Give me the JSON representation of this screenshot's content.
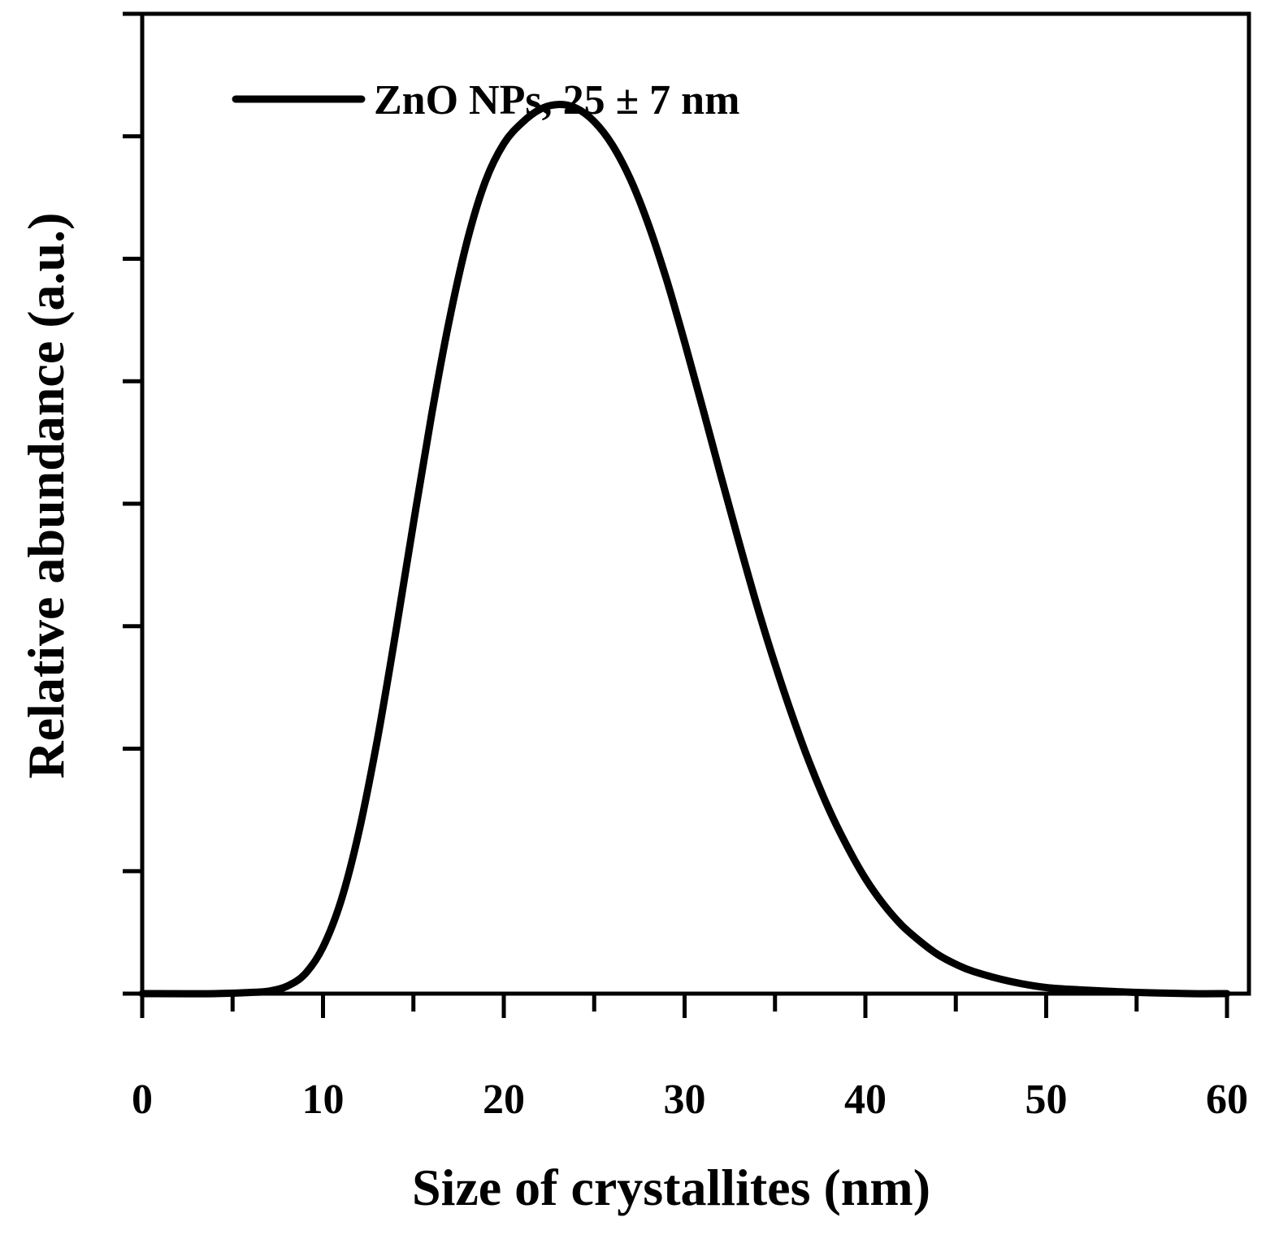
{
  "chart_data": {
    "type": "line",
    "title": "",
    "xlabel": "Size of crystallites (nm)",
    "ylabel": "Relative abundance (a.u.)",
    "xlim": [
      0,
      60
    ],
    "ylim": [
      0,
      8
    ],
    "x_major_ticks": [
      "0",
      "10",
      "20",
      "30",
      "40",
      "50",
      "60"
    ],
    "x_minor_step": 5,
    "y_tick_step": 1,
    "y_tick_labels_shown": false,
    "grid": false,
    "legend_position": "top-left",
    "series": [
      {
        "name": "ZnO NPs, 25 ± 7 nm",
        "color": "#000000",
        "x": [
          0,
          4,
          6,
          7,
          8,
          9,
          10,
          11,
          12,
          13,
          14,
          15,
          16,
          17,
          18,
          19,
          20,
          21,
          22,
          23,
          24,
          25,
          26,
          27,
          28,
          29,
          30,
          31,
          32,
          33,
          34,
          35,
          36,
          37,
          38,
          39,
          40,
          41,
          42,
          43,
          44,
          45,
          46,
          48,
          50,
          52,
          55,
          58,
          60
        ],
        "y": [
          0,
          0.0,
          0.01,
          0.02,
          0.06,
          0.16,
          0.38,
          0.76,
          1.33,
          2.07,
          2.93,
          3.84,
          4.72,
          5.51,
          6.16,
          6.64,
          6.94,
          7.11,
          7.22,
          7.26,
          7.23,
          7.12,
          6.93,
          6.65,
          6.28,
          5.83,
          5.32,
          4.78,
          4.23,
          3.69,
          3.17,
          2.69,
          2.25,
          1.85,
          1.5,
          1.2,
          0.94,
          0.73,
          0.56,
          0.43,
          0.32,
          0.24,
          0.18,
          0.1,
          0.05,
          0.03,
          0.01,
          0.0,
          0.0
        ]
      }
    ]
  }
}
